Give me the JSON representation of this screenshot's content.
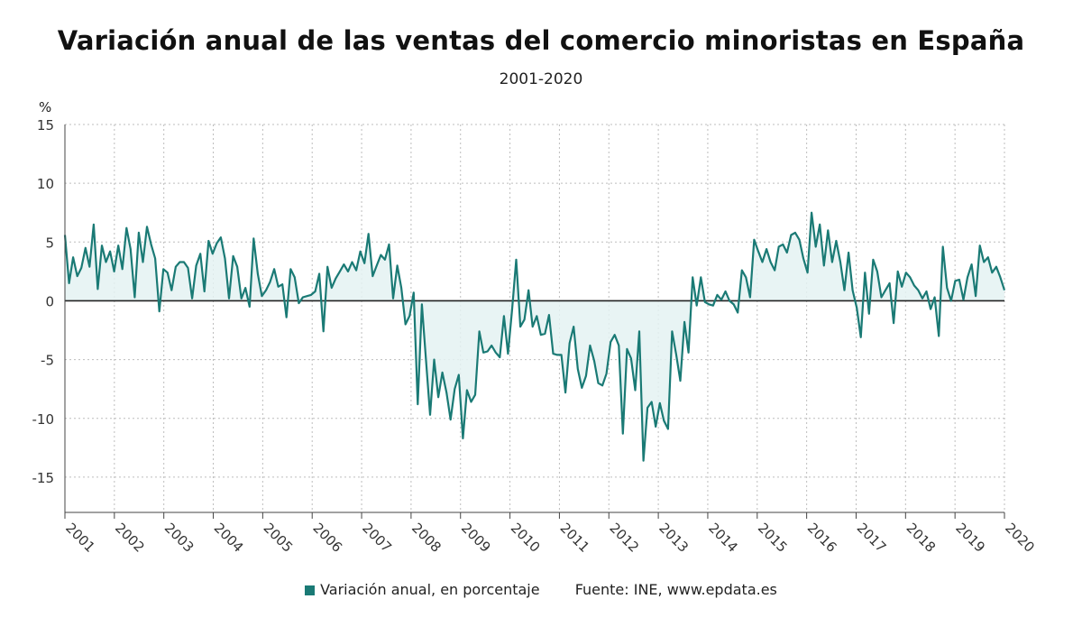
{
  "colors": {
    "series": "#1a7a75",
    "fill": "#e4f2f2",
    "grid": "#bdbdbd",
    "zero": "#222222"
  },
  "chart_data": {
    "type": "area",
    "title": "Variación anual de las ventas del comercio minoristas en España",
    "subtitle": "2001-2020",
    "ylabel": "%",
    "ylim": [
      -18,
      15
    ],
    "yticks": [
      15,
      10,
      5,
      0,
      -5,
      -10,
      -15
    ],
    "xlim": [
      2001,
      2020
    ],
    "xticks": [
      "2001",
      "2002",
      "2003",
      "2004",
      "2005",
      "2006",
      "2007",
      "2008",
      "2009",
      "2010",
      "2011",
      "2012",
      "2013",
      "2014",
      "2015",
      "2016",
      "2017",
      "2018",
      "2019",
      "2020"
    ],
    "grid": true,
    "legend_position": "bottom",
    "source": "Fuente: INE, www.epdata.es",
    "series": [
      {
        "name": "Variación anual, en porcentaje",
        "values": [
          5.6,
          1.5,
          3.7,
          2.1,
          2.8,
          4.5,
          2.9,
          6.5,
          1.0,
          4.7,
          3.3,
          4.2,
          2.5,
          4.7,
          2.7,
          6.2,
          4.4,
          0.3,
          5.8,
          3.3,
          6.3,
          4.8,
          3.6,
          -0.9,
          2.7,
          2.4,
          0.9,
          2.9,
          3.3,
          3.3,
          2.8,
          0.2,
          3.0,
          4.0,
          0.8,
          5.1,
          4.0,
          4.9,
          5.4,
          3.6,
          0.2,
          3.8,
          2.9,
          0.2,
          1.1,
          -0.5,
          5.3,
          2.3,
          0.4,
          0.9,
          1.6,
          2.7,
          1.2,
          1.4,
          -1.4,
          2.7,
          2.0,
          -0.2,
          0.3,
          0.4,
          0.5,
          0.8,
          2.3,
          -2.6,
          2.9,
          1.1,
          1.9,
          2.5,
          3.1,
          2.5,
          3.3,
          2.6,
          4.2,
          3.2,
          5.7,
          2.1,
          3.0,
          3.9,
          3.5,
          4.8,
          0.2,
          3.0,
          1.1,
          -2.0,
          -1.3,
          0.7,
          -8.8,
          -0.3,
          -5.0,
          -9.7,
          -5.0,
          -8.2,
          -6.1,
          -7.8,
          -10.1,
          -7.5,
          -6.3,
          -11.7,
          -7.6,
          -8.6,
          -8.0,
          -2.6,
          -4.4,
          -4.3,
          -3.8,
          -4.4,
          -4.8,
          -1.3,
          -4.5,
          -0.7,
          3.5,
          -2.2,
          -1.6,
          0.9,
          -2.2,
          -1.3,
          -2.9,
          -2.8,
          -1.2,
          -4.5,
          -4.6,
          -4.6,
          -7.8,
          -3.6,
          -2.2,
          -5.8,
          -7.4,
          -6.4,
          -3.8,
          -5.1,
          -7.0,
          -7.2,
          -6.2,
          -3.5,
          -2.9,
          -3.8,
          -11.3,
          -4.1,
          -4.9,
          -7.6,
          -2.6,
          -13.6,
          -9.1,
          -8.6,
          -10.7,
          -8.7,
          -10.2,
          -10.9,
          -2.6,
          -4.6,
          -6.8,
          -1.8,
          -4.4,
          2.0,
          -0.4,
          2.0,
          -0.1,
          -0.3,
          -0.4,
          0.5,
          0.1,
          0.8,
          0.0,
          -0.3,
          -1.0,
          2.6,
          2.0,
          0.3,
          5.2,
          4.2,
          3.3,
          4.4,
          3.3,
          2.6,
          4.6,
          4.8,
          4.1,
          5.6,
          5.8,
          5.2,
          3.6,
          2.4,
          7.5,
          4.6,
          6.5,
          3.0,
          6.0,
          3.3,
          5.1,
          3.3,
          0.9,
          4.1,
          0.9,
          -0.6,
          -3.1,
          2.4,
          -1.1,
          3.5,
          2.5,
          0.3,
          0.9,
          1.5,
          -1.9,
          2.5,
          1.2,
          2.4,
          2.0,
          1.3,
          0.9,
          0.2,
          0.8,
          -0.7,
          0.3,
          -3.0,
          4.6,
          1.1,
          0.0,
          1.7,
          1.8,
          0.1,
          2.0,
          3.1,
          0.4,
          4.7,
          3.3,
          3.7,
          2.4,
          2.9,
          2.0,
          0.9
        ]
      }
    ]
  }
}
